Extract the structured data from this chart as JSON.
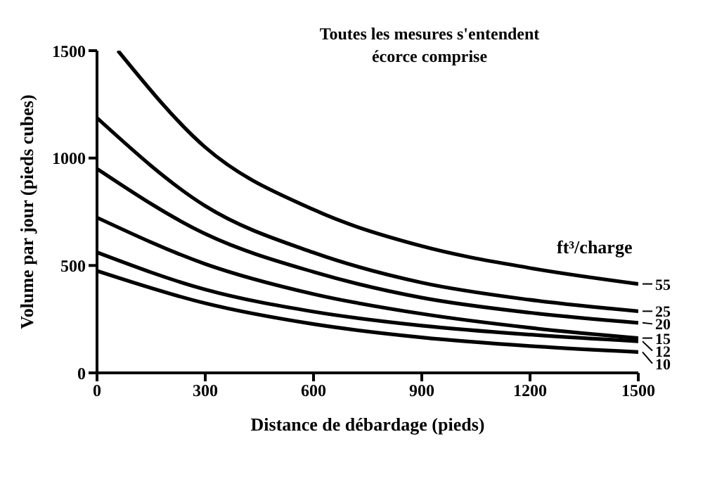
{
  "chart_data": {
    "type": "line",
    "xlabel": "Distance de débardage (pieds)",
    "ylabel": "Volume par jour (pieds cubes)",
    "legend_title": "ft³/charge",
    "annotations": [
      "Toutes les mesures s'entendent écorce comprise"
    ],
    "xlim": [
      0,
      1500
    ],
    "ylim": [
      0,
      1500
    ],
    "xticks": [
      0,
      300,
      600,
      900,
      1200,
      1500
    ],
    "yticks": [
      0,
      500,
      1000,
      1500
    ],
    "legend": "right",
    "series": [
      {
        "name": "55",
        "color": "#000000",
        "x": [
          58,
          300,
          600,
          900,
          1200,
          1500
        ],
        "values": [
          1500,
          1050,
          760,
          590,
          488,
          414
        ]
      },
      {
        "name": "25",
        "color": "#000000",
        "x": [
          0,
          300,
          600,
          900,
          1200,
          1500
        ],
        "values": [
          1187,
          777,
          560,
          420,
          340,
          287
        ]
      },
      {
        "name": "20",
        "color": "#000000",
        "x": [
          0,
          300,
          600,
          900,
          1200,
          1500
        ],
        "values": [
          950,
          647,
          470,
          350,
          280,
          233
        ]
      },
      {
        "name": "15",
        "color": "#000000",
        "x": [
          0,
          300,
          600,
          900,
          1200,
          1500
        ],
        "values": [
          723,
          507,
          367,
          275,
          210,
          162
        ]
      },
      {
        "name": "12",
        "color": "#000000",
        "x": [
          0,
          300,
          600,
          900,
          1200,
          1500
        ],
        "values": [
          561,
          388,
          285,
          220,
          178,
          147
        ]
      },
      {
        "name": "10",
        "color": "#000000",
        "x": [
          0,
          300,
          600,
          900,
          1200,
          1500
        ],
        "values": [
          475,
          324,
          227,
          165,
          125,
          97
        ]
      }
    ]
  }
}
